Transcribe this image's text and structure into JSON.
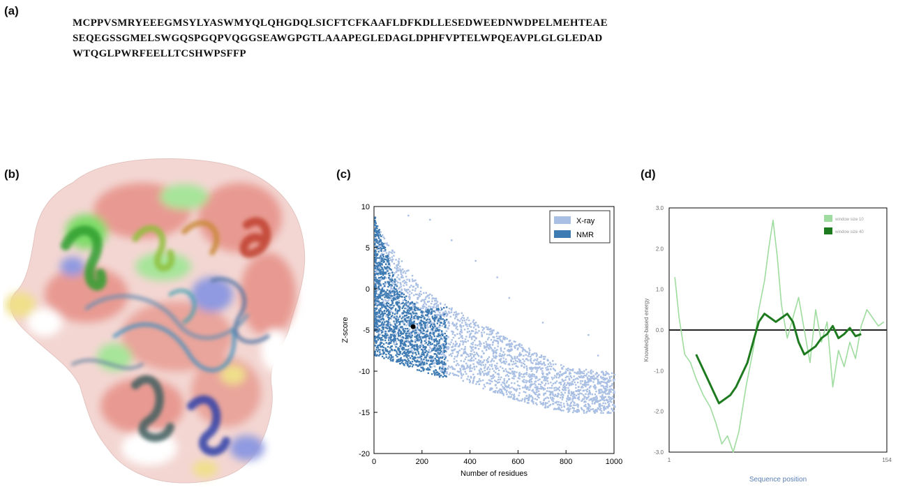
{
  "panel_labels": {
    "a": "(a)",
    "b": "(b)",
    "c": "(c)",
    "d": "(d)"
  },
  "sequence": [
    "MCPPVSMRYEEEGMSYLYASWMYQLQHGDQLSICFTCFKAAFLDFKDLLESEDWEEDNWDPELMEHTEAE",
    "SEQEGSSGMELSWGQSPGQPVQGGSEAWGPGTLAAAPEGLEDAGLDPHFVPTELWPQEAVPLGLGLEDAD",
    "WTQGLPWRFEELLTCSHWPSFFP"
  ],
  "colors": {
    "xray": "#a9bfe3",
    "nmr": "#3f7bb3",
    "window10": "#9fdc9f",
    "window40": "#1e7a1e",
    "surface_red": "#e89a92",
    "surface_green": "#7fdc6a",
    "surface_blue": "#8f9ae0",
    "surface_yellow": "#f0e08a"
  },
  "chart_data": [
    {
      "type": "scatter",
      "title": "",
      "xlabel": "Number of residues",
      "ylabel": "Z-score",
      "xlim": [
        0,
        1000
      ],
      "ylim": [
        -20,
        10
      ],
      "xticks": [
        "0",
        "200",
        "400",
        "600",
        "800",
        "1000"
      ],
      "yticks": [
        "10",
        "5",
        "0",
        "-5",
        "-10",
        "-15",
        "-20"
      ],
      "legend": {
        "position": "top-right",
        "entries": [
          "X-ray",
          "NMR"
        ]
      },
      "series": [
        {
          "name": "X-ray",
          "trend": {
            "x": [
              0,
              200,
              400,
              600,
              800,
              1000
            ],
            "upper": [
              8,
              0,
              -3.5,
              -6.5,
              -9.5,
              -10
            ],
            "lower": [
              -5,
              -9,
              -11.5,
              -13.5,
              -15,
              -15
            ]
          }
        },
        {
          "name": "NMR",
          "trend": {
            "x": [
              0,
              100,
              200,
              300
            ],
            "upper": [
              9,
              0,
              -2.5,
              -2
            ],
            "lower": [
              -8,
              -9,
              -10,
              -11
            ]
          }
        }
      ],
      "highlight_point": {
        "x": 163,
        "y": -4.6
      }
    },
    {
      "type": "line",
      "title": "",
      "xlabel": "Sequence position",
      "ylabel": "Knowledge-based energy",
      "xlim": [
        1,
        154
      ],
      "ylim": [
        -3,
        3
      ],
      "xticks": [
        "1",
        "154"
      ],
      "yticks": [
        "3.0",
        "2.0",
        "1.0",
        "0.0",
        "-1.0",
        "-2.0",
        "-3.0"
      ],
      "legend": {
        "position": "top-right",
        "entries": [
          "window size 10",
          "window size 40"
        ]
      },
      "series": [
        {
          "name": "window size 10",
          "x": [
            5,
            8,
            12,
            16,
            20,
            25,
            30,
            34,
            38,
            42,
            46,
            50,
            55,
            60,
            64,
            68,
            71,
            74,
            77,
            80,
            84,
            88,
            92,
            96,
            100,
            104,
            108,
            112,
            116,
            120,
            124,
            128,
            132,
            136,
            140,
            144,
            148,
            152
          ],
          "values": [
            1.3,
            0.3,
            -0.6,
            -0.8,
            -1.2,
            -1.6,
            -1.9,
            -2.3,
            -2.8,
            -2.6,
            -3.0,
            -2.5,
            -1.4,
            -0.5,
            0.5,
            1.2,
            2.0,
            2.7,
            1.8,
            0.6,
            -0.2,
            0.3,
            0.8,
            0.0,
            -0.8,
            0.5,
            -0.3,
            0.2,
            -1.4,
            -0.5,
            -0.9,
            -0.3,
            -0.7,
            0.1,
            0.5,
            0.3,
            0.1,
            0.2
          ]
        },
        {
          "name": "window size 40",
          "x": [
            20,
            24,
            28,
            32,
            36,
            40,
            44,
            48,
            52,
            56,
            60,
            64,
            68,
            72,
            76,
            80,
            84,
            88,
            92,
            96,
            100,
            104,
            108,
            112,
            116,
            120,
            124,
            128,
            132,
            136
          ],
          "values": [
            -0.6,
            -0.9,
            -1.2,
            -1.5,
            -1.8,
            -1.7,
            -1.6,
            -1.4,
            -1.1,
            -0.8,
            -0.3,
            0.2,
            0.4,
            0.3,
            0.2,
            0.3,
            0.4,
            0.2,
            -0.3,
            -0.6,
            -0.5,
            -0.4,
            -0.2,
            -0.1,
            0.1,
            -0.2,
            -0.1,
            0.05,
            -0.15,
            -0.1
          ]
        }
      ],
      "reference_line": 0.0
    }
  ]
}
